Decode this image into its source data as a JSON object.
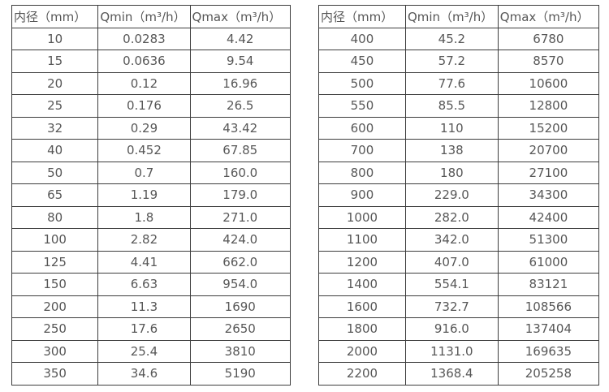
{
  "page": {
    "background": "#ffffff",
    "text_color": "#575757",
    "border_color": "#3d3d3d"
  },
  "tables": [
    {
      "name": "flow-table-small-diameters",
      "headers": [
        "内径（mm）",
        "Qmin（m³/h）",
        "Qmax（m³/h）"
      ],
      "rows": [
        [
          "10",
          "0.0283",
          "4.42"
        ],
        [
          "15",
          "0.0636",
          "9.54"
        ],
        [
          "20",
          "0.12",
          "16.96"
        ],
        [
          "25",
          "0.176",
          "26.5"
        ],
        [
          "32",
          "0.29",
          "43.42"
        ],
        [
          "40",
          "0.452",
          "67.85"
        ],
        [
          "50",
          "0.7",
          "160.0"
        ],
        [
          "65",
          "1.19",
          "179.0"
        ],
        [
          "80",
          "1.8",
          "271.0"
        ],
        [
          "100",
          "2.82",
          "424.0"
        ],
        [
          "125",
          "4.41",
          "662.0"
        ],
        [
          "150",
          "6.63",
          "954.0"
        ],
        [
          "200",
          "11.3",
          "1690"
        ],
        [
          "250",
          "17.6",
          "2650"
        ],
        [
          "300",
          "25.4",
          "3810"
        ],
        [
          "350",
          "34.6",
          "5190"
        ]
      ]
    },
    {
      "name": "flow-table-large-diameters",
      "headers": [
        "内径（mm）",
        "Qmin（m³/h）",
        "Qmax（m³/h）"
      ],
      "rows": [
        [
          "400",
          "45.2",
          "6780"
        ],
        [
          "450",
          "57.2",
          "8570"
        ],
        [
          "500",
          "77.6",
          "10600"
        ],
        [
          "550",
          "85.5",
          "12800"
        ],
        [
          "600",
          "110",
          "15200"
        ],
        [
          "700",
          "138",
          "20700"
        ],
        [
          "800",
          "180",
          "27100"
        ],
        [
          "900",
          "229.0",
          "34300"
        ],
        [
          "1000",
          "282.0",
          "42400"
        ],
        [
          "1100",
          "342.0",
          "51300"
        ],
        [
          "1200",
          "407.0",
          "61000"
        ],
        [
          "1400",
          "554.1",
          "83121"
        ],
        [
          "1600",
          "732.7",
          "108566"
        ],
        [
          "1800",
          "916.0",
          "137404"
        ],
        [
          "2000",
          "1131.0",
          "169635"
        ],
        [
          "2200",
          "1368.4",
          "205258"
        ]
      ]
    }
  ]
}
